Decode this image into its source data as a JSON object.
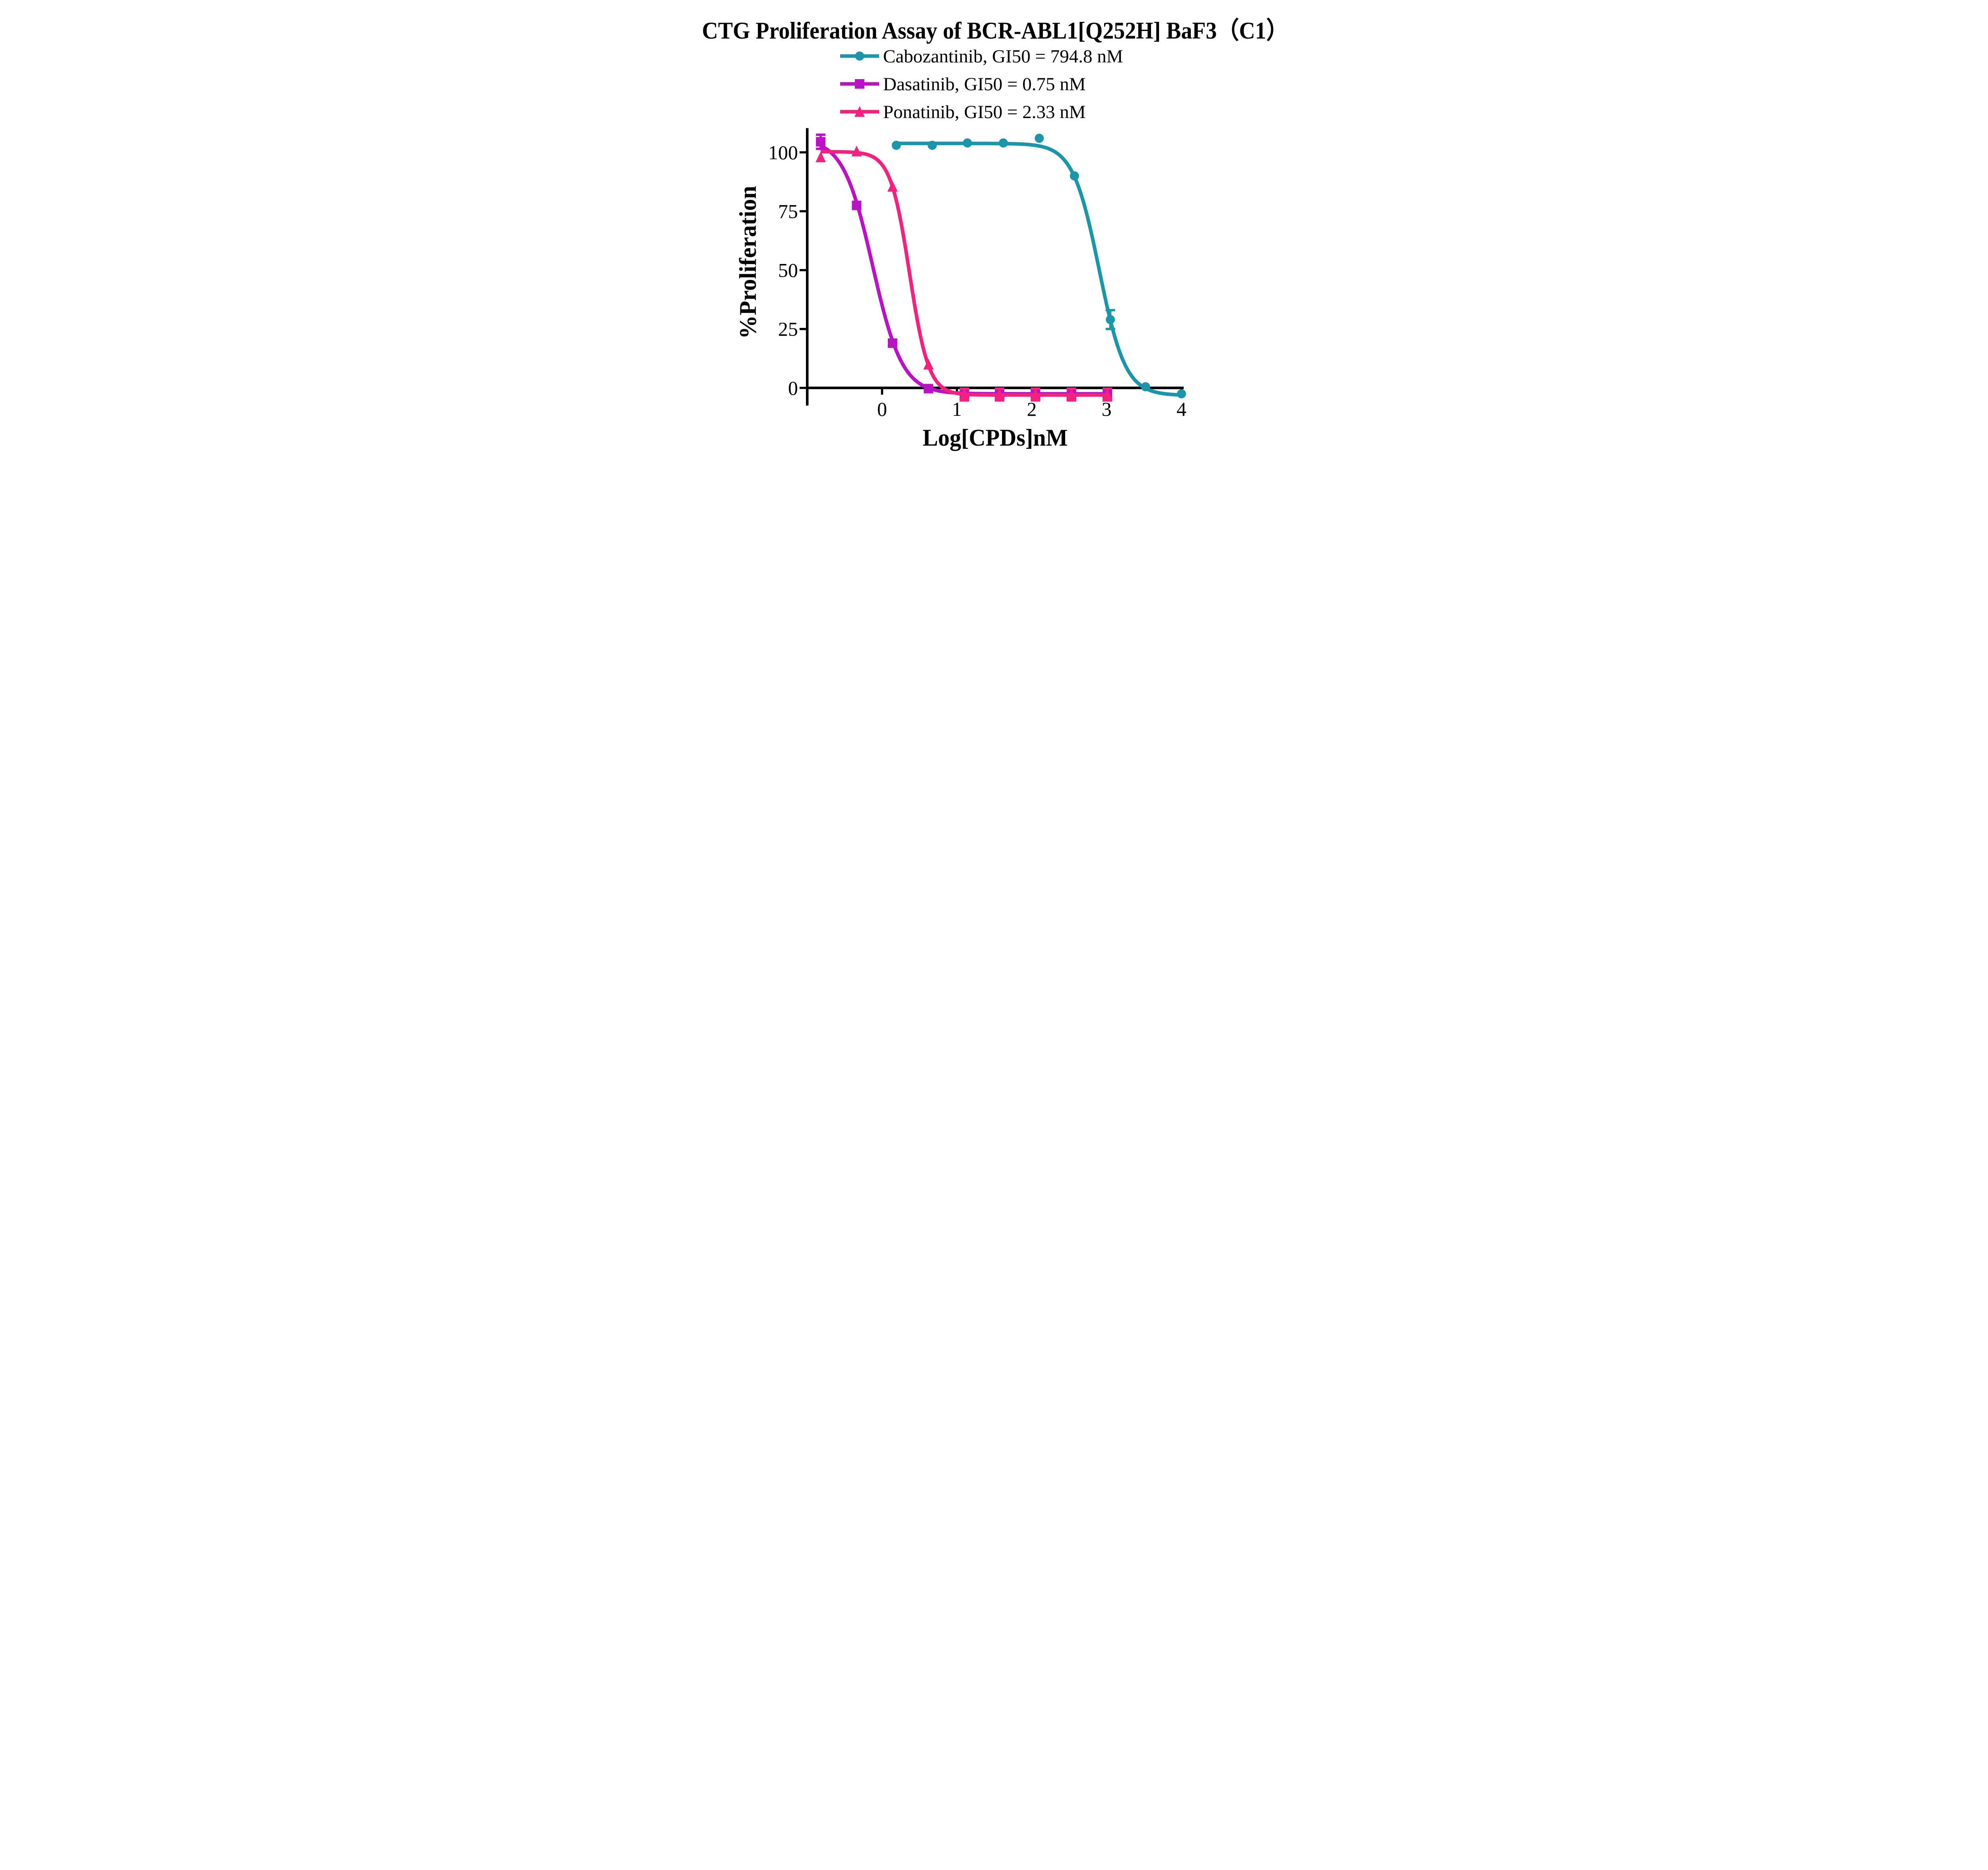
{
  "chart_data": {
    "type": "line",
    "title": "CTG Proliferation Assay of BCR-ABL1[Q252H] BaF3（C1）",
    "xlabel": "Log[CPDs]nM",
    "ylabel": "%Proliferation",
    "x_ticks": [
      0,
      1,
      2,
      3,
      4
    ],
    "y_ticks": [
      0,
      25,
      50,
      75,
      100
    ],
    "xlim": [
      -1.0,
      4.03
    ],
    "ylim": [
      -7.5,
      110.3
    ],
    "grid": false,
    "legend_position": "top-center",
    "axis_color": "#000000",
    "series": [
      {
        "name": "Cabozantinib",
        "legend_label": "Cabozantinib, GI50 = 794.8 nM",
        "gi50_nM": 794.8,
        "color": "#1B95AA",
        "marker": "circle",
        "x": [
          0.19,
          0.67,
          1.14,
          1.62,
          2.1,
          2.57,
          3.05,
          3.52,
          4.0
        ],
        "y": [
          103,
          103,
          104,
          104,
          106,
          90,
          29,
          0.5,
          -2.5
        ],
        "y_err": [
          0,
          0,
          0,
          0,
          0,
          0,
          4,
          0,
          0
        ],
        "fit": {
          "top": 103.8,
          "bottom": -3.2,
          "logx50": 2.9,
          "hill": 2.48
        }
      },
      {
        "name": "Dasatinib",
        "legend_label": "Dasatinib, GI50 = 0.75 nM",
        "gi50_nM": 0.75,
        "color": "#BB13C4",
        "marker": "square",
        "x": [
          -0.82,
          -0.34,
          0.14,
          0.62,
          1.1,
          1.57,
          2.05,
          2.53,
          3.01
        ],
        "y": [
          104.5,
          77.5,
          19,
          -0.3,
          -2.4,
          -2.4,
          -2.4,
          -2.4,
          -2.4
        ],
        "y_err": [
          3,
          0,
          0,
          0,
          2,
          2,
          2,
          2,
          2
        ],
        "fit": {
          "top": 106.0,
          "bottom": -2.5,
          "logx50": -0.125,
          "hill": 2.2
        }
      },
      {
        "name": "Ponatinib",
        "legend_label": "Ponatinib, GI50 = 2.33 nM",
        "gi50_nM": 2.33,
        "color": "#F4217E",
        "marker": "triangle",
        "x": [
          -0.82,
          -0.34,
          0.14,
          0.62,
          1.1,
          1.57,
          2.05,
          2.53,
          3.01
        ],
        "y": [
          98,
          100.5,
          85.5,
          10,
          -2.8,
          -2.8,
          -2.8,
          -2.8,
          -2.8
        ],
        "y_err": [
          0,
          0,
          0,
          0,
          2.5,
          2.5,
          2.5,
          2.5,
          2.5
        ],
        "fit": {
          "top": 100.3,
          "bottom": -3.0,
          "logx50": 0.367,
          "hill": 3.4
        }
      }
    ]
  }
}
